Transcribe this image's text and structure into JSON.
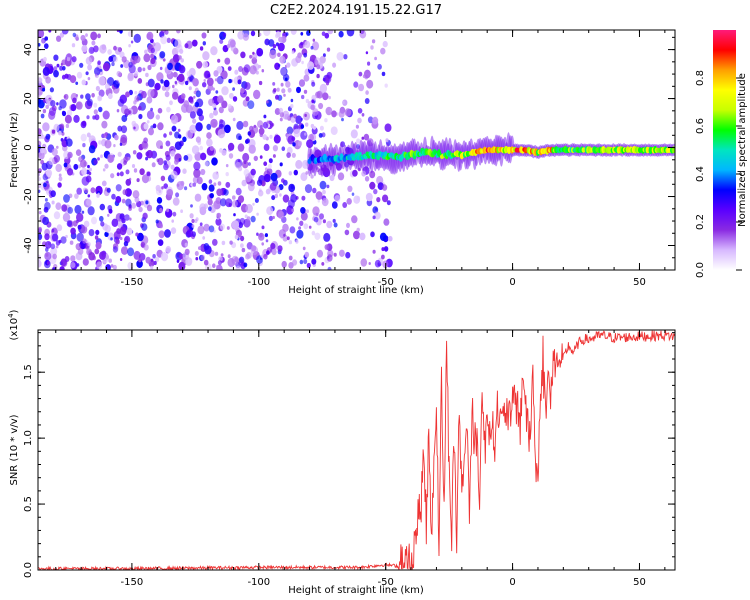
{
  "title": "C2E2.2024.191.15.22.G17",
  "chart_data": [
    {
      "type": "heatmap",
      "title": "C2E2.2024.191.15.22.G17",
      "xlabel": "Height of straight line (km)",
      "ylabel": "Frequency (Hz)",
      "xlim": [
        -187,
        64
      ],
      "ylim": [
        -50,
        48
      ],
      "x_ticks": [
        -150,
        -100,
        -50,
        0,
        50
      ],
      "y_ticks": [
        -40,
        -20,
        0,
        20,
        40
      ],
      "colorbar": {
        "label": "Normalized spectral amplitude",
        "range": [
          0,
          1
        ],
        "ticks": [
          0.0,
          0.2,
          0.4,
          0.6,
          0.8
        ],
        "colormap": [
          "#ffffff",
          "#d7b8ff",
          "#8a2be2",
          "#5a00ff",
          "#0000ff",
          "#00b7ff",
          "#00e5c0",
          "#00ff00",
          "#c8ff00",
          "#ffff00",
          "#ff9f00",
          "#ff0000",
          "#ff1b7a"
        ]
      },
      "noise_region_x": [
        -187,
        -48
      ],
      "signal_track": [
        {
          "x": -80,
          "f": -5,
          "amp": 0.35
        },
        {
          "x": -65,
          "f": -4,
          "amp": 0.45
        },
        {
          "x": -55,
          "f": -3,
          "amp": 0.5
        },
        {
          "x": -45,
          "f": -4,
          "amp": 0.55
        },
        {
          "x": -40,
          "f": -3,
          "amp": 0.6
        },
        {
          "x": -35,
          "f": -2,
          "amp": 0.6
        },
        {
          "x": -28,
          "f": -3,
          "amp": 0.6
        },
        {
          "x": -20,
          "f": -3,
          "amp": 0.65
        },
        {
          "x": -15,
          "f": -2,
          "amp": 0.75
        },
        {
          "x": -10,
          "f": -1,
          "amp": 0.8
        },
        {
          "x": -5,
          "f": -1,
          "amp": 0.7
        },
        {
          "x": 0,
          "f": -1,
          "amp": 0.8
        },
        {
          "x": 5,
          "f": -1,
          "amp": 0.85
        },
        {
          "x": 10,
          "f": -2,
          "amp": 0.7
        },
        {
          "x": 15,
          "f": -1,
          "amp": 0.75
        },
        {
          "x": 20,
          "f": -1,
          "amp": 0.6
        },
        {
          "x": 30,
          "f": -1,
          "amp": 0.6
        },
        {
          "x": 40,
          "f": -1,
          "amp": 0.65
        },
        {
          "x": 50,
          "f": -1,
          "amp": 0.65
        },
        {
          "x": 60,
          "f": -1,
          "amp": 0.7
        },
        {
          "x": 64,
          "f": -1,
          "amp": 0.7
        }
      ]
    },
    {
      "type": "line",
      "xlabel": "Height of straight line (km)",
      "ylabel": "SNR (10 * v/v)",
      "y_scale_label": "(x10",
      "y_scale_exponent": "4",
      "y_scale_suffix": ")",
      "xlim": [
        -187,
        64
      ],
      "ylim": [
        0,
        1.82
      ],
      "x_ticks": [
        -150,
        -100,
        -50,
        0,
        50
      ],
      "y_ticks": [
        0.0,
        0.5,
        1.0,
        1.5
      ],
      "color": "#ee3333",
      "series": [
        {
          "x": [
            -187,
            -150,
            -100,
            -60,
            -50,
            -45,
            -42,
            -40,
            -38,
            -36,
            -35,
            -34,
            -33,
            -32,
            -31,
            -30,
            -29,
            -28,
            -27,
            -26,
            -25,
            -24,
            -23,
            -22,
            -21,
            -20,
            -19,
            -18,
            -17,
            -16,
            -15,
            -14,
            -13,
            -12,
            -11,
            -10,
            -9,
            -8,
            -7,
            -6,
            -5,
            -4,
            -3,
            -2,
            -1,
            0,
            1,
            2,
            3,
            4,
            5,
            6,
            7,
            8,
            9,
            10,
            11,
            12,
            13,
            14,
            15,
            16,
            17,
            18,
            19,
            20,
            22,
            24,
            26,
            28,
            30,
            35,
            40,
            50,
            60,
            64
          ],
          "values": [
            0.01,
            0.01,
            0.02,
            0.02,
            0.04,
            0.03,
            0.05,
            0.1,
            0.3,
            0.5,
            0.9,
            0.3,
            1.1,
            0.2,
            0.9,
            1.2,
            0.25,
            1.45,
            0.4,
            1.7,
            0.8,
            0.3,
            1.0,
            0.2,
            1.3,
            0.5,
            0.9,
            1.1,
            0.5,
            1.2,
            0.9,
            1.0,
            0.6,
            1.35,
            0.9,
            1.2,
            1.1,
            1.1,
            1.0,
            1.2,
            1.15,
            1.1,
            1.2,
            1.25,
            1.1,
            1.2,
            1.4,
            1.2,
            1.1,
            1.5,
            1.3,
            1.05,
            1.0,
            1.55,
            0.8,
            0.65,
            1.35,
            1.6,
            1.2,
            1.45,
            1.3,
            1.55,
            1.6,
            1.5,
            1.65,
            1.6,
            1.7,
            1.65,
            1.72,
            1.75,
            1.75,
            1.78,
            1.76,
            1.77,
            1.78,
            1.77
          ]
        }
      ]
    }
  ]
}
